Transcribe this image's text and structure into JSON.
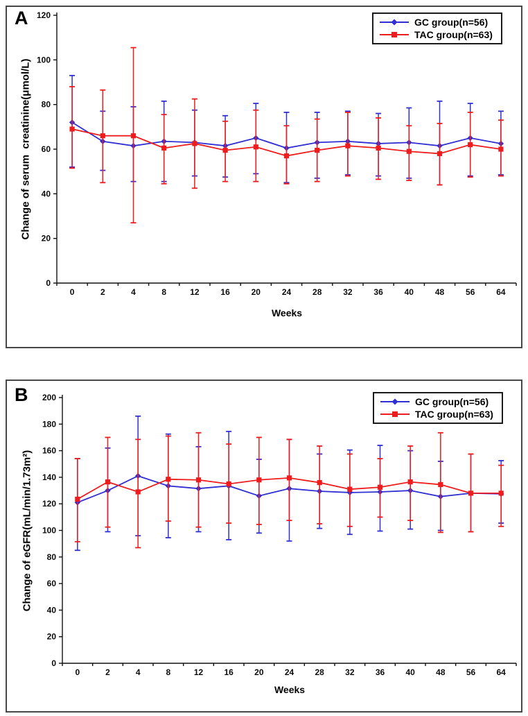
{
  "chart_data": [
    {
      "type": "line",
      "panel_label": "A",
      "xlabel": "Weeks",
      "ylabel": "Change of serum  creatinine(μmol/L)",
      "ylim": [
        0,
        120
      ],
      "ytick_step": 20,
      "grid": false,
      "legend_position": "top-right",
      "error_bars": true,
      "categories": [
        "0",
        "2",
        "4",
        "8",
        "12",
        "16",
        "20",
        "24",
        "28",
        "32",
        "36",
        "40",
        "48",
        "56",
        "64"
      ],
      "series": [
        {
          "name": "GC group(n=56)",
          "color": "#2f2fd3",
          "marker": "diamond",
          "values": [
            72,
            63.5,
            61.5,
            63.5,
            63,
            61.5,
            65,
            60.5,
            63,
            63.5,
            62.5,
            63,
            61.5,
            65,
            62.5
          ],
          "err_low": [
            52,
            50.5,
            45.5,
            45.5,
            48,
            47.5,
            49,
            45,
            47,
            48.5,
            48,
            47,
            44,
            48,
            48.5
          ],
          "err_high": [
            93,
            77,
            79,
            81.5,
            77.5,
            75,
            80.5,
            76.5,
            76.5,
            77,
            76,
            78.5,
            81.5,
            80.5,
            77
          ]
        },
        {
          "name": "TAC group(n=63)",
          "color": "#ee1c1c",
          "marker": "square",
          "values": [
            69,
            66,
            66,
            60.5,
            62.5,
            59.5,
            61,
            57,
            59.5,
            61.5,
            60.5,
            59,
            58,
            62,
            60
          ],
          "err_low": [
            51.5,
            45,
            27,
            44.5,
            42.5,
            45.5,
            45.5,
            44.5,
            45.5,
            48,
            46.5,
            46,
            44,
            47.5,
            48
          ],
          "err_high": [
            88,
            86.5,
            105.5,
            75.5,
            82.5,
            72.5,
            77.5,
            70.5,
            73.5,
            76.5,
            74,
            70.5,
            71.5,
            76.5,
            73
          ]
        }
      ]
    },
    {
      "type": "line",
      "panel_label": "B",
      "xlabel": "Weeks",
      "ylabel": "Change of eGFR(mL/min/1.73m²)",
      "ylim": [
        0,
        200
      ],
      "ytick_step": 20,
      "grid": false,
      "legend_position": "top-right",
      "error_bars": true,
      "categories": [
        "0",
        "2",
        "4",
        "8",
        "12",
        "16",
        "20",
        "24",
        "28",
        "32",
        "36",
        "40",
        "48",
        "56",
        "64"
      ],
      "series": [
        {
          "name": "GC group(n=56)",
          "color": "#2f2fd3",
          "marker": "diamond",
          "values": [
            121,
            130,
            141,
            133.5,
            131.5,
            133.5,
            126,
            131.5,
            129.5,
            128.5,
            129,
            130,
            125.5,
            128,
            127.5
          ],
          "err_low": [
            85,
            99,
            96,
            94.5,
            99,
            93,
            98,
            92,
            101.5,
            97,
            99.5,
            101,
            100,
            99,
            105.5
          ],
          "err_high": [
            154,
            162,
            186,
            172.5,
            163,
            174.5,
            153.5,
            168.5,
            157.5,
            160.5,
            164,
            160,
            152,
            157.5,
            152.5
          ]
        },
        {
          "name": "TAC group(n=63)",
          "color": "#ee1c1c",
          "marker": "square",
          "values": [
            123.5,
            136.5,
            129,
            138.5,
            138,
            135,
            138,
            139.5,
            136,
            131,
            132.5,
            136.5,
            134.5,
            128,
            128
          ],
          "err_low": [
            91.5,
            102.5,
            87,
            107,
            102.5,
            105.5,
            104.5,
            107.5,
            105,
            103,
            110,
            107.5,
            98.5,
            99,
            103
          ],
          "err_high": [
            154,
            170,
            168.5,
            171,
            173.5,
            165,
            170,
            168.5,
            163.5,
            157.5,
            154,
            163.5,
            173.5,
            157.5,
            149
          ]
        }
      ]
    }
  ]
}
